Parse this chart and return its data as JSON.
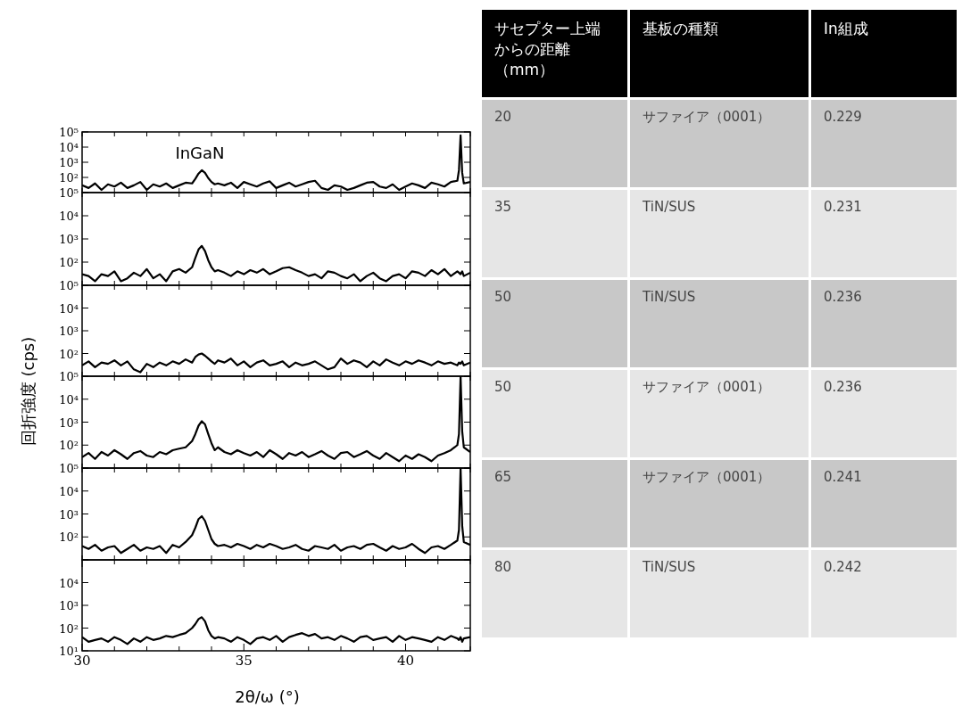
{
  "chart_data": [
    {
      "type": "line",
      "annotations": [
        "InGaN"
      ],
      "color": "#000000",
      "log": "y",
      "tick_labels": "y",
      "xlim": [
        30,
        42
      ],
      "ylim": [
        10,
        100000
      ],
      "xticks": [
        {
          "value": 30,
          "label": null
        },
        {
          "value": 31,
          "label": null
        },
        {
          "value": 32,
          "label": null
        },
        {
          "value": 33,
          "label": null
        },
        {
          "value": 34,
          "label": null
        },
        {
          "value": 35,
          "label": null
        },
        {
          "value": 36,
          "label": null
        },
        {
          "value": 37,
          "label": null
        },
        {
          "value": 38,
          "label": null
        },
        {
          "value": 39,
          "label": null
        },
        {
          "value": 40,
          "label": null
        },
        {
          "value": 41,
          "label": null
        },
        {
          "value": 42,
          "label": null
        }
      ],
      "yticks": [
        {
          "value": 10,
          "label": null
        },
        {
          "value": 100,
          "label": "10²"
        },
        {
          "value": 1000,
          "label": "10³"
        },
        {
          "value": 10000,
          "label": "10⁴"
        },
        {
          "value": 100000,
          "label": "10⁵"
        }
      ],
      "x": [
        30.0,
        30.2,
        30.4,
        30.6,
        30.8,
        31.0,
        31.2,
        31.4,
        31.6,
        31.8,
        32.0,
        32.2,
        32.4,
        32.6,
        32.8,
        33.0,
        33.2,
        33.4,
        33.5,
        33.6,
        33.7,
        33.8,
        33.9,
        34.0,
        34.1,
        34.2,
        34.4,
        34.6,
        34.8,
        35.0,
        35.2,
        35.4,
        35.6,
        35.8,
        36.0,
        36.2,
        36.4,
        36.6,
        36.8,
        37.0,
        37.2,
        37.4,
        37.6,
        37.8,
        38.0,
        38.2,
        38.4,
        38.6,
        38.8,
        39.0,
        39.2,
        39.4,
        39.6,
        39.8,
        40.0,
        40.2,
        40.4,
        40.6,
        40.8,
        41.0,
        41.2,
        41.4,
        41.6,
        41.65,
        41.7,
        41.75,
        41.8,
        42.0
      ],
      "values": [
        30,
        20,
        40,
        15,
        35,
        25,
        45,
        20,
        30,
        50,
        15,
        35,
        25,
        40,
        20,
        30,
        45,
        40,
        80,
        180,
        300,
        200,
        90,
        50,
        35,
        40,
        30,
        45,
        20,
        50,
        35,
        25,
        40,
        55,
        20,
        30,
        45,
        25,
        35,
        50,
        60,
        20,
        15,
        30,
        25,
        15,
        20,
        30,
        45,
        50,
        25,
        20,
        35,
        15,
        25,
        40,
        30,
        20,
        45,
        35,
        25,
        50,
        60,
        300,
        60000,
        200,
        40,
        50
      ]
    },
    {
      "type": "line",
      "color": "#000000",
      "log": "y",
      "tick_labels": "y",
      "xlim": [
        30,
        42
      ],
      "ylim": [
        10,
        100000
      ],
      "xticks": [
        {
          "value": 30,
          "label": null
        },
        {
          "value": 31,
          "label": null
        },
        {
          "value": 32,
          "label": null
        },
        {
          "value": 33,
          "label": null
        },
        {
          "value": 34,
          "label": null
        },
        {
          "value": 35,
          "label": null
        },
        {
          "value": 36,
          "label": null
        },
        {
          "value": 37,
          "label": null
        },
        {
          "value": 38,
          "label": null
        },
        {
          "value": 39,
          "label": null
        },
        {
          "value": 40,
          "label": null
        },
        {
          "value": 41,
          "label": null
        },
        {
          "value": 42,
          "label": null
        }
      ],
      "yticks": [
        {
          "value": 10,
          "label": null
        },
        {
          "value": 100,
          "label": "10²"
        },
        {
          "value": 1000,
          "label": "10³"
        },
        {
          "value": 10000,
          "label": "10⁴"
        },
        {
          "value": 100000,
          "label": "10⁵"
        }
      ],
      "x": [
        30.0,
        30.2,
        30.4,
        30.6,
        30.8,
        31.0,
        31.2,
        31.4,
        31.6,
        31.8,
        32.0,
        32.2,
        32.4,
        32.6,
        32.8,
        33.0,
        33.2,
        33.4,
        33.5,
        33.6,
        33.7,
        33.8,
        33.9,
        34.0,
        34.1,
        34.2,
        34.4,
        34.6,
        34.8,
        35.0,
        35.2,
        35.4,
        35.6,
        35.8,
        36.0,
        36.2,
        36.4,
        36.6,
        36.8,
        37.0,
        37.2,
        37.4,
        37.6,
        37.8,
        38.0,
        38.2,
        38.4,
        38.6,
        38.8,
        39.0,
        39.2,
        39.4,
        39.6,
        39.8,
        40.0,
        40.2,
        40.4,
        40.6,
        40.8,
        41.0,
        41.2,
        41.4,
        41.6,
        41.65,
        41.7,
        41.75,
        41.8,
        42.0
      ],
      "values": [
        30,
        25,
        15,
        30,
        25,
        40,
        15,
        20,
        35,
        25,
        50,
        20,
        30,
        15,
        40,
        50,
        35,
        60,
        150,
        350,
        500,
        300,
        120,
        60,
        40,
        45,
        35,
        25,
        40,
        30,
        45,
        35,
        50,
        30,
        40,
        55,
        60,
        45,
        35,
        25,
        30,
        20,
        40,
        35,
        25,
        20,
        30,
        15,
        25,
        35,
        20,
        15,
        25,
        30,
        20,
        40,
        35,
        25,
        45,
        30,
        50,
        25,
        40,
        35,
        30,
        40,
        25,
        35
      ]
    },
    {
      "type": "line",
      "color": "#000000",
      "log": "y",
      "tick_labels": "y",
      "xlim": [
        30,
        42
      ],
      "ylim": [
        10,
        100000
      ],
      "ylabel": "回折強度 (cps)",
      "xticks": [
        {
          "value": 30,
          "label": null
        },
        {
          "value": 31,
          "label": null
        },
        {
          "value": 32,
          "label": null
        },
        {
          "value": 33,
          "label": null
        },
        {
          "value": 34,
          "label": null
        },
        {
          "value": 35,
          "label": null
        },
        {
          "value": 36,
          "label": null
        },
        {
          "value": 37,
          "label": null
        },
        {
          "value": 38,
          "label": null
        },
        {
          "value": 39,
          "label": null
        },
        {
          "value": 40,
          "label": null
        },
        {
          "value": 41,
          "label": null
        },
        {
          "value": 42,
          "label": null
        }
      ],
      "yticks": [
        {
          "value": 10,
          "label": null
        },
        {
          "value": 100,
          "label": "10²"
        },
        {
          "value": 1000,
          "label": "10³"
        },
        {
          "value": 10000,
          "label": "10⁴"
        },
        {
          "value": 100000,
          "label": "10⁵"
        }
      ],
      "x": [
        30.0,
        30.2,
        30.4,
        30.6,
        30.8,
        31.0,
        31.2,
        31.4,
        31.6,
        31.8,
        32.0,
        32.2,
        32.4,
        32.6,
        32.8,
        33.0,
        33.2,
        33.4,
        33.5,
        33.6,
        33.7,
        33.8,
        33.9,
        34.0,
        34.1,
        34.2,
        34.4,
        34.6,
        34.8,
        35.0,
        35.2,
        35.4,
        35.6,
        35.8,
        36.0,
        36.2,
        36.4,
        36.6,
        36.8,
        37.0,
        37.2,
        37.4,
        37.6,
        37.8,
        38.0,
        38.2,
        38.4,
        38.6,
        38.8,
        39.0,
        39.2,
        39.4,
        39.6,
        39.8,
        40.0,
        40.2,
        40.4,
        40.6,
        40.8,
        41.0,
        41.2,
        41.4,
        41.6,
        41.65,
        41.7,
        41.75,
        41.8,
        42.0
      ],
      "values": [
        30,
        45,
        25,
        40,
        35,
        50,
        30,
        45,
        20,
        15,
        35,
        25,
        40,
        30,
        45,
        35,
        55,
        40,
        70,
        90,
        100,
        80,
        60,
        45,
        35,
        50,
        40,
        60,
        30,
        45,
        25,
        40,
        50,
        30,
        35,
        45,
        25,
        40,
        30,
        35,
        45,
        30,
        20,
        25,
        60,
        35,
        50,
        40,
        25,
        45,
        30,
        55,
        40,
        30,
        45,
        35,
        50,
        40,
        30,
        45,
        35,
        40,
        30,
        40,
        35,
        45,
        30,
        40
      ]
    },
    {
      "type": "line",
      "color": "#000000",
      "log": "y",
      "tick_labels": "y",
      "xlim": [
        30,
        42
      ],
      "ylim": [
        10,
        100000
      ],
      "xticks": [
        {
          "value": 30,
          "label": null
        },
        {
          "value": 31,
          "label": null
        },
        {
          "value": 32,
          "label": null
        },
        {
          "value": 33,
          "label": null
        },
        {
          "value": 34,
          "label": null
        },
        {
          "value": 35,
          "label": null
        },
        {
          "value": 36,
          "label": null
        },
        {
          "value": 37,
          "label": null
        },
        {
          "value": 38,
          "label": null
        },
        {
          "value": 39,
          "label": null
        },
        {
          "value": 40,
          "label": null
        },
        {
          "value": 41,
          "label": null
        },
        {
          "value": 42,
          "label": null
        }
      ],
      "yticks": [
        {
          "value": 10,
          "label": null
        },
        {
          "value": 100,
          "label": "10²"
        },
        {
          "value": 1000,
          "label": "10³"
        },
        {
          "value": 10000,
          "label": "10⁴"
        },
        {
          "value": 100000,
          "label": "10⁵"
        }
      ],
      "x": [
        30.0,
        30.2,
        30.4,
        30.6,
        30.8,
        31.0,
        31.2,
        31.4,
        31.6,
        31.8,
        32.0,
        32.2,
        32.4,
        32.6,
        32.8,
        33.0,
        33.2,
        33.4,
        33.5,
        33.6,
        33.7,
        33.8,
        33.9,
        34.0,
        34.1,
        34.2,
        34.4,
        34.6,
        34.8,
        35.0,
        35.2,
        35.4,
        35.6,
        35.8,
        36.0,
        36.2,
        36.4,
        36.6,
        36.8,
        37.0,
        37.2,
        37.4,
        37.6,
        37.8,
        38.0,
        38.2,
        38.4,
        38.6,
        38.8,
        39.0,
        39.2,
        39.4,
        39.6,
        39.8,
        40.0,
        40.2,
        40.4,
        40.6,
        40.8,
        41.0,
        41.2,
        41.4,
        41.6,
        41.65,
        41.7,
        41.75,
        41.8,
        42.0
      ],
      "values": [
        30,
        45,
        25,
        50,
        35,
        60,
        40,
        25,
        45,
        55,
        35,
        30,
        50,
        40,
        60,
        70,
        80,
        150,
        300,
        700,
        1100,
        800,
        300,
        120,
        60,
        80,
        50,
        40,
        60,
        45,
        35,
        50,
        30,
        60,
        40,
        25,
        45,
        35,
        50,
        30,
        40,
        55,
        35,
        25,
        45,
        50,
        30,
        40,
        55,
        35,
        25,
        45,
        30,
        20,
        35,
        25,
        40,
        30,
        20,
        35,
        45,
        60,
        100,
        300,
        100000,
        400,
        80,
        50
      ]
    },
    {
      "type": "line",
      "color": "#000000",
      "log": "y",
      "tick_labels": "y",
      "xlim": [
        30,
        42
      ],
      "ylim": [
        10,
        100000
      ],
      "xticks": [
        {
          "value": 30,
          "label": null
        },
        {
          "value": 31,
          "label": null
        },
        {
          "value": 32,
          "label": null
        },
        {
          "value": 33,
          "label": null
        },
        {
          "value": 34,
          "label": null
        },
        {
          "value": 35,
          "label": null
        },
        {
          "value": 36,
          "label": null
        },
        {
          "value": 37,
          "label": null
        },
        {
          "value": 38,
          "label": null
        },
        {
          "value": 39,
          "label": null
        },
        {
          "value": 40,
          "label": null
        },
        {
          "value": 41,
          "label": null
        },
        {
          "value": 42,
          "label": null
        }
      ],
      "yticks": [
        {
          "value": 10,
          "label": null
        },
        {
          "value": 100,
          "label": "10²"
        },
        {
          "value": 1000,
          "label": "10³"
        },
        {
          "value": 10000,
          "label": "10⁴"
        },
        {
          "value": 100000,
          "label": "10⁵"
        }
      ],
      "x": [
        30.0,
        30.2,
        30.4,
        30.6,
        30.8,
        31.0,
        31.2,
        31.4,
        31.6,
        31.8,
        32.0,
        32.2,
        32.4,
        32.6,
        32.8,
        33.0,
        33.2,
        33.4,
        33.5,
        33.6,
        33.7,
        33.8,
        33.9,
        34.0,
        34.1,
        34.2,
        34.4,
        34.6,
        34.8,
        35.0,
        35.2,
        35.4,
        35.6,
        35.8,
        36.0,
        36.2,
        36.4,
        36.6,
        36.8,
        37.0,
        37.2,
        37.4,
        37.6,
        37.8,
        38.0,
        38.2,
        38.4,
        38.6,
        38.8,
        39.0,
        39.2,
        39.4,
        39.6,
        39.8,
        40.0,
        40.2,
        40.4,
        40.6,
        40.8,
        41.0,
        41.2,
        41.4,
        41.6,
        41.65,
        41.7,
        41.75,
        41.8,
        42.0
      ],
      "values": [
        40,
        30,
        45,
        25,
        35,
        40,
        20,
        30,
        45,
        25,
        35,
        30,
        40,
        20,
        45,
        35,
        60,
        120,
        250,
        600,
        800,
        500,
        200,
        80,
        50,
        40,
        45,
        35,
        50,
        40,
        30,
        45,
        35,
        50,
        40,
        30,
        35,
        45,
        30,
        25,
        40,
        35,
        30,
        45,
        25,
        35,
        40,
        30,
        45,
        50,
        35,
        25,
        40,
        30,
        35,
        50,
        30,
        20,
        35,
        40,
        30,
        45,
        70,
        200,
        100000,
        300,
        60,
        45
      ]
    },
    {
      "type": "line",
      "color": "#000000",
      "log": "y",
      "xlabel": "2θ/ω (°)",
      "xlim": [
        30,
        42
      ],
      "ylim": [
        10,
        100000
      ],
      "xticks": [
        30,
        {
          "value": 31,
          "label": null
        },
        {
          "value": 32,
          "label": null
        },
        {
          "value": 33,
          "label": null
        },
        {
          "value": 34,
          "label": null
        },
        35,
        {
          "value": 36,
          "label": null
        },
        {
          "value": 37,
          "label": null
        },
        {
          "value": 38,
          "label": null
        },
        {
          "value": 39,
          "label": null
        },
        40,
        {
          "value": 41,
          "label": null
        },
        {
          "value": 42,
          "label": null
        }
      ],
      "yticks": [
        {
          "value": 10,
          "label": "10¹"
        },
        {
          "value": 100,
          "label": "10²"
        },
        {
          "value": 1000,
          "label": "10³"
        },
        {
          "value": 10000,
          "label": "10⁴"
        },
        {
          "value": 100000,
          "label": null
        }
      ],
      "x": [
        30.0,
        30.2,
        30.4,
        30.6,
        30.8,
        31.0,
        31.2,
        31.4,
        31.6,
        31.8,
        32.0,
        32.2,
        32.4,
        32.6,
        32.8,
        33.0,
        33.2,
        33.4,
        33.5,
        33.6,
        33.7,
        33.8,
        33.9,
        34.0,
        34.1,
        34.2,
        34.4,
        34.6,
        34.8,
        35.0,
        35.2,
        35.4,
        35.6,
        35.8,
        36.0,
        36.2,
        36.4,
        36.6,
        36.8,
        37.0,
        37.2,
        37.4,
        37.6,
        37.8,
        38.0,
        38.2,
        38.4,
        38.6,
        38.8,
        39.0,
        39.2,
        39.4,
        39.6,
        39.8,
        40.0,
        40.2,
        40.4,
        40.6,
        40.8,
        41.0,
        41.2,
        41.4,
        41.6,
        41.65,
        41.7,
        41.75,
        41.8,
        42.0
      ],
      "values": [
        40,
        25,
        30,
        35,
        25,
        40,
        30,
        20,
        35,
        25,
        40,
        30,
        35,
        45,
        40,
        50,
        60,
        100,
        150,
        250,
        300,
        200,
        80,
        45,
        35,
        40,
        35,
        25,
        40,
        30,
        20,
        35,
        40,
        30,
        45,
        25,
        40,
        50,
        60,
        45,
        55,
        35,
        40,
        30,
        45,
        35,
        25,
        40,
        45,
        30,
        35,
        40,
        25,
        45,
        30,
        40,
        35,
        30,
        25,
        40,
        30,
        45,
        35,
        30,
        40,
        25,
        35,
        40
      ]
    },
    {
      "type": "other",
      "annotations": [
        "サセプター上端からの距離（mm）",
        "基板の種類",
        "In組成",
        "20",
        "サファイア（0001）",
        "0.229",
        "35",
        "TiN/SUS",
        "0.231",
        "50",
        "TiN/SUS",
        "0.236",
        "50",
        "サファイア（0001）",
        "0.236",
        "65",
        "サファイア（0001）",
        "0.241",
        "80",
        "TiN/SUS",
        "0.242"
      ]
    }
  ]
}
